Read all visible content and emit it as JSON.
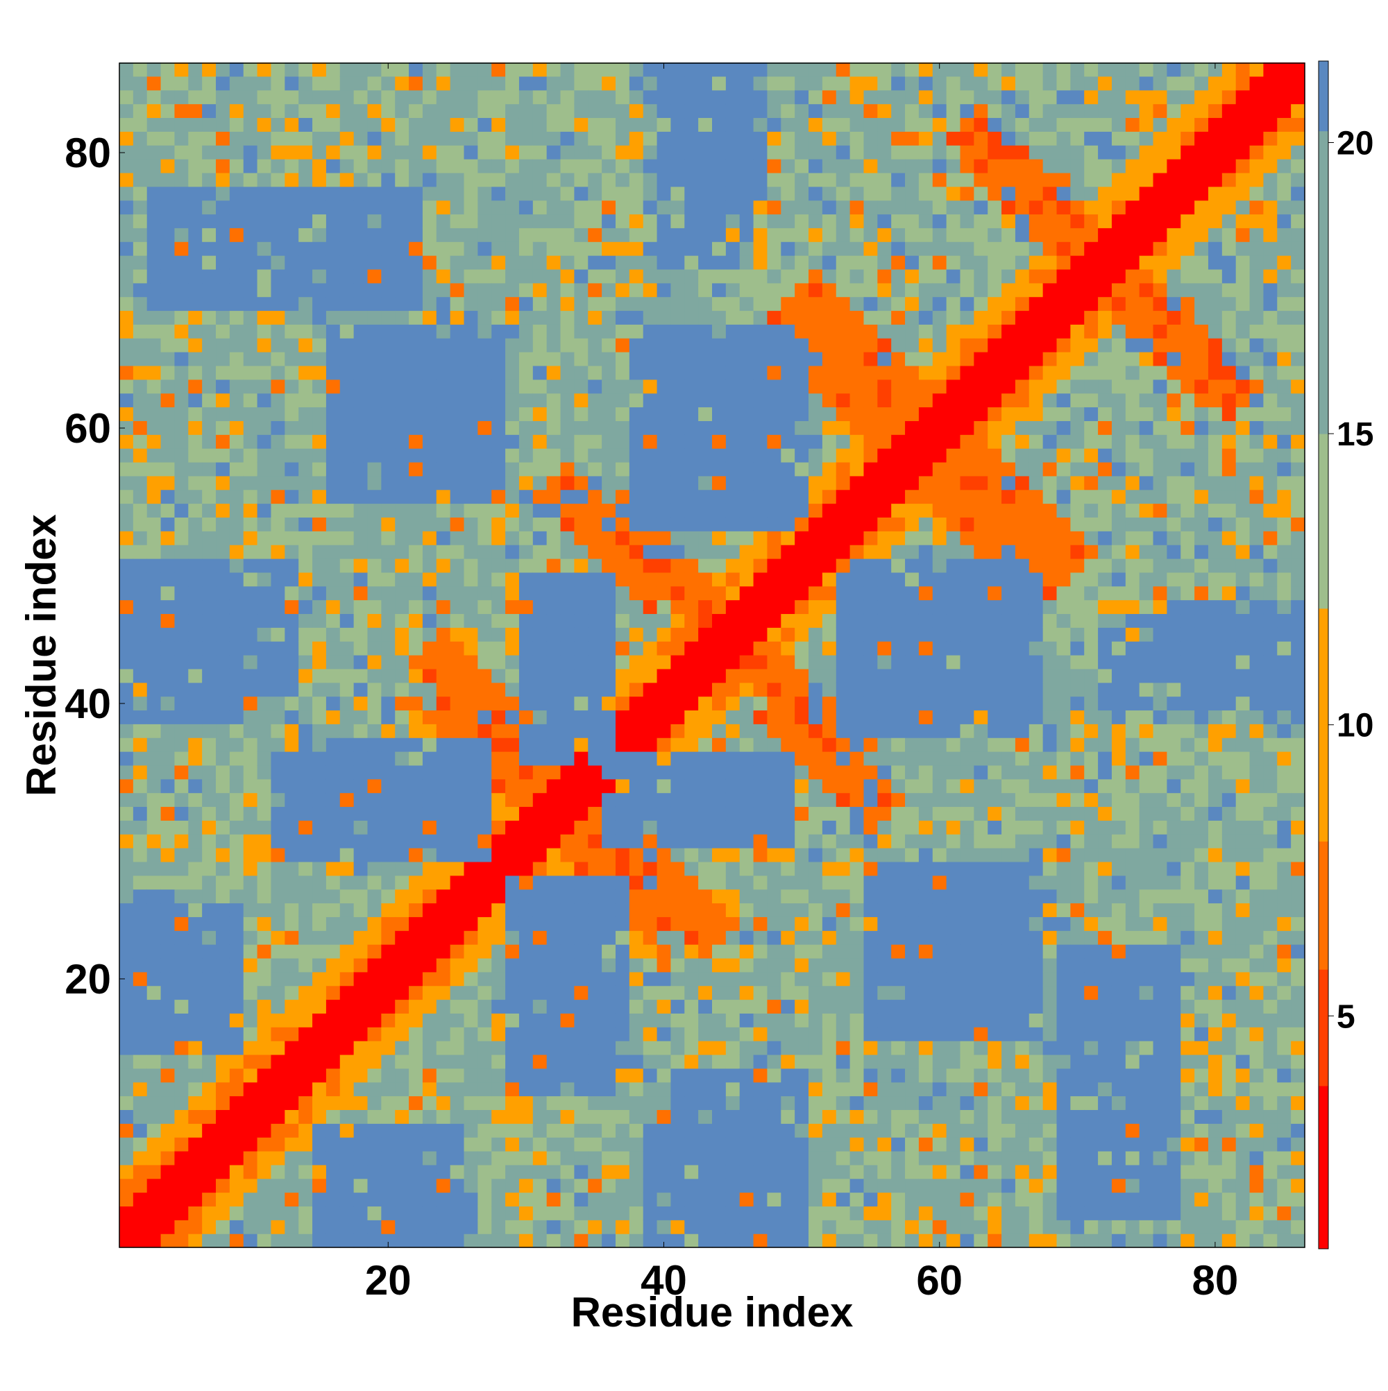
{
  "chart_data": {
    "type": "heatmap",
    "title": "",
    "xlabel": "Residue index",
    "ylabel": "Residue index",
    "n_residues": 86,
    "xlim": [
      1,
      86
    ],
    "ylim": [
      1,
      86
    ],
    "x_ticks": [
      20,
      40,
      60,
      80
    ],
    "y_ticks": [
      20,
      40,
      60,
      80
    ],
    "colorbar": {
      "ticks": [
        5,
        10,
        15,
        20
      ],
      "range": [
        1,
        21.4
      ],
      "colors": [
        "#ff0000",
        "#ff4000",
        "#ff7000",
        "#ffa000",
        "#9ebe8c",
        "#7fa8a0",
        "#5a88c0",
        "#0000ff"
      ],
      "bounds": [
        1,
        3.8,
        5.8,
        8.0,
        12.0,
        15.0,
        20.2,
        21.4
      ]
    },
    "description_of_values": "Symmetric residue-residue distance map (Angstrom); diagonal band red, helix-helix contact lobes orange, far blocks blue.",
    "diagonal_band_width": 2,
    "contact_lobes": [
      {
        "center": [
          36,
          52
        ],
        "direction": "anti",
        "length": 8
      },
      {
        "center": [
          27,
          40
        ],
        "direction": "anti",
        "length": 8
      },
      {
        "center": [
          50,
          40
        ],
        "direction": "anti",
        "length": 8
      },
      {
        "center": [
          36,
          28
        ],
        "direction": "anti",
        "length": 8
      },
      {
        "center": [
          66,
          54
        ],
        "direction": "anti",
        "length": 8
      },
      {
        "center": [
          52,
          64
        ],
        "direction": "anti",
        "length": 8
      },
      {
        "center": [
          76,
          67
        ],
        "direction": "anti",
        "length": 8
      },
      {
        "center": [
          66,
          78
        ],
        "direction": "anti",
        "length": 8
      },
      {
        "center": [
          44,
          44
        ],
        "direction": "cross",
        "length": 4
      }
    ],
    "far_blocks": [
      {
        "x": [
          16,
          28
        ],
        "y": [
          55,
          66
        ],
        "value": 21
      },
      {
        "x": [
          40,
          50
        ],
        "y": [
          54,
          67
        ],
        "value": 21
      },
      {
        "x": [
          53,
          67
        ],
        "y": [
          38,
          49
        ],
        "value": 21
      },
      {
        "x": [
          72,
          86
        ],
        "y": [
          40,
          46
        ],
        "value": 21
      },
      {
        "x": [
          30,
          36
        ],
        "y": [
          36,
          49
        ],
        "value": 21
      },
      {
        "x": [
          13,
          26
        ],
        "y": [
          30,
          35
        ],
        "value": 21
      },
      {
        "x": [
          41,
          49
        ],
        "y": [
          30,
          36
        ],
        "value": 21
      },
      {
        "x": [
          29,
          37
        ],
        "y": [
          12,
          27
        ],
        "value": 21
      },
      {
        "x": [
          56,
          67
        ],
        "y": [
          16,
          28
        ],
        "value": 21
      },
      {
        "x": [
          15,
          25
        ],
        "y": [
          1,
          9
        ],
        "value": 21
      },
      {
        "x": [
          41,
          50
        ],
        "y": [
          1,
          13
        ],
        "value": 21
      },
      {
        "x": [
          41,
          47
        ],
        "y": [
          77,
          86
        ],
        "value": 21
      },
      {
        "x": 1,
        "y": [
          16,
          26
        ],
        "value": 21
      },
      {
        "x": [
          1,
          9
        ],
        "y": [
          39,
          49
        ],
        "value": 21
      },
      {
        "x": [
          3,
          22
        ],
        "y": [
          69,
          77
        ],
        "value": 21
      },
      {
        "x": [
          70,
          75
        ],
        "y": [
          17,
          21
        ],
        "value": 21
      }
    ]
  }
}
